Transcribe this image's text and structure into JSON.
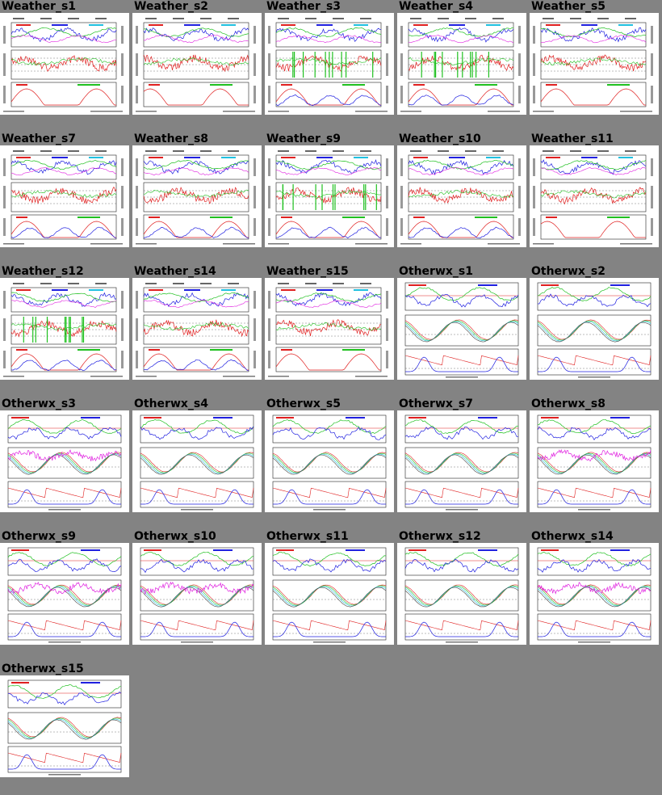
{
  "thumbnails": [
    {
      "title": "Weather_s1",
      "kind": "weather",
      "variant": "a"
    },
    {
      "title": "Weather_s2",
      "kind": "weather",
      "variant": "b"
    },
    {
      "title": "Weather_s3",
      "kind": "weather",
      "variant": "c"
    },
    {
      "title": "Weather_s4",
      "kind": "weather",
      "variant": "c"
    },
    {
      "title": "Weather_s5",
      "kind": "weather",
      "variant": "a"
    },
    {
      "title": "Weather_s7",
      "kind": "weather",
      "variant": "d"
    },
    {
      "title": "Weather_s8",
      "kind": "weather",
      "variant": "d"
    },
    {
      "title": "Weather_s9",
      "kind": "weather",
      "variant": "c"
    },
    {
      "title": "Weather_s10",
      "kind": "weather",
      "variant": "d"
    },
    {
      "title": "Weather_s11",
      "kind": "weather",
      "variant": "b"
    },
    {
      "title": "Weather_s12",
      "kind": "weather",
      "variant": "c"
    },
    {
      "title": "Weather_s14",
      "kind": "weather",
      "variant": "d"
    },
    {
      "title": "Weather_s15",
      "kind": "weather",
      "variant": "a"
    },
    {
      "title": "Otherwx_s1",
      "kind": "otherwx",
      "variant": "a"
    },
    {
      "title": "Otherwx_s2",
      "kind": "otherwx",
      "variant": "a"
    },
    {
      "title": "Otherwx_s3",
      "kind": "otherwx",
      "variant": "m"
    },
    {
      "title": "Otherwx_s4",
      "kind": "otherwx",
      "variant": "a"
    },
    {
      "title": "Otherwx_s5",
      "kind": "otherwx",
      "variant": "a"
    },
    {
      "title": "Otherwx_s7",
      "kind": "otherwx",
      "variant": "a"
    },
    {
      "title": "Otherwx_s8",
      "kind": "otherwx",
      "variant": "m"
    },
    {
      "title": "Otherwx_s9",
      "kind": "otherwx",
      "variant": "m"
    },
    {
      "title": "Otherwx_s10",
      "kind": "otherwx",
      "variant": "m"
    },
    {
      "title": "Otherwx_s11",
      "kind": "otherwx",
      "variant": "a"
    },
    {
      "title": "Otherwx_s12",
      "kind": "otherwx",
      "variant": "a"
    },
    {
      "title": "Otherwx_s14",
      "kind": "otherwx",
      "variant": "m"
    },
    {
      "title": "Otherwx_s15",
      "kind": "otherwx",
      "variant": "a"
    }
  ],
  "colors": {
    "page_background": "#838383",
    "thumbnail_background": "#ffffff",
    "series_red": "#e02020",
    "series_green": "#20c020",
    "series_blue": "#2020e0",
    "series_cyan": "#20c0e0",
    "series_magenta": "#e020e0"
  }
}
